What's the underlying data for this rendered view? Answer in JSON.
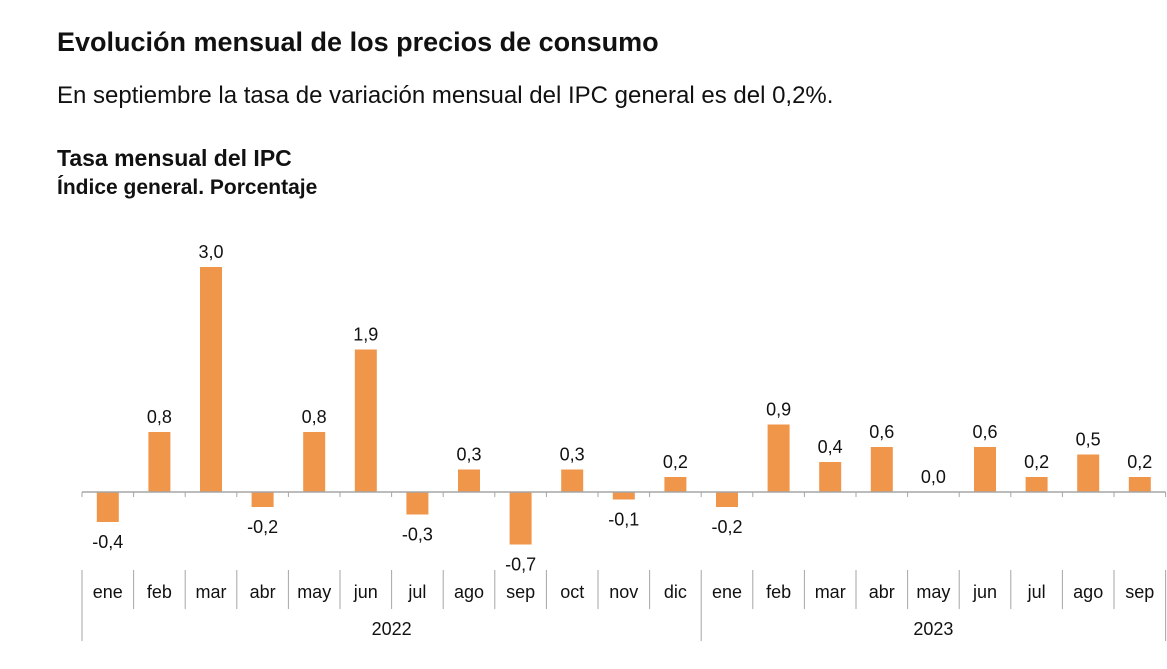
{
  "header": {
    "title": "Evolución mensual de los precios de consumo",
    "subtitle": "En septiembre la tasa de variación mensual del IPC general es del 0,2%."
  },
  "chart_header": {
    "title": "Tasa mensual del IPC",
    "subtitle": "Índice general. Porcentaje"
  },
  "colors": {
    "bar": "#f0964a",
    "axis": "#a6a6a6",
    "text": "#111111"
  },
  "chart_data": {
    "type": "bar",
    "title": "Tasa mensual del IPC",
    "subtitle": "Índice general. Porcentaje",
    "xlabel": "",
    "ylabel": "",
    "grid": false,
    "legend": "none",
    "categories": [
      "ene",
      "feb",
      "mar",
      "abr",
      "may",
      "jun",
      "jul",
      "ago",
      "sep",
      "oct",
      "nov",
      "dic",
      "ene",
      "feb",
      "mar",
      "abr",
      "may",
      "jun",
      "jul",
      "ago",
      "sep"
    ],
    "groups": [
      {
        "label": "2022",
        "count": 12
      },
      {
        "label": "2023",
        "count": 9
      }
    ],
    "values": [
      -0.4,
      0.8,
      3.0,
      -0.2,
      0.8,
      1.9,
      -0.3,
      0.3,
      -0.7,
      0.3,
      -0.1,
      0.2,
      -0.2,
      0.9,
      0.4,
      0.6,
      0.0,
      0.6,
      0.2,
      0.5,
      0.2
    ],
    "value_labels": [
      "-0,4",
      "0,8",
      "3,0",
      "-0,2",
      "0,8",
      "1,9",
      "-0,3",
      "0,3",
      "-0,7",
      "0,3",
      "-0,1",
      "0,2",
      "-0,2",
      "0,9",
      "0,4",
      "0,6",
      "0,0",
      "0,6",
      "0,2",
      "0,5",
      "0,2"
    ]
  }
}
